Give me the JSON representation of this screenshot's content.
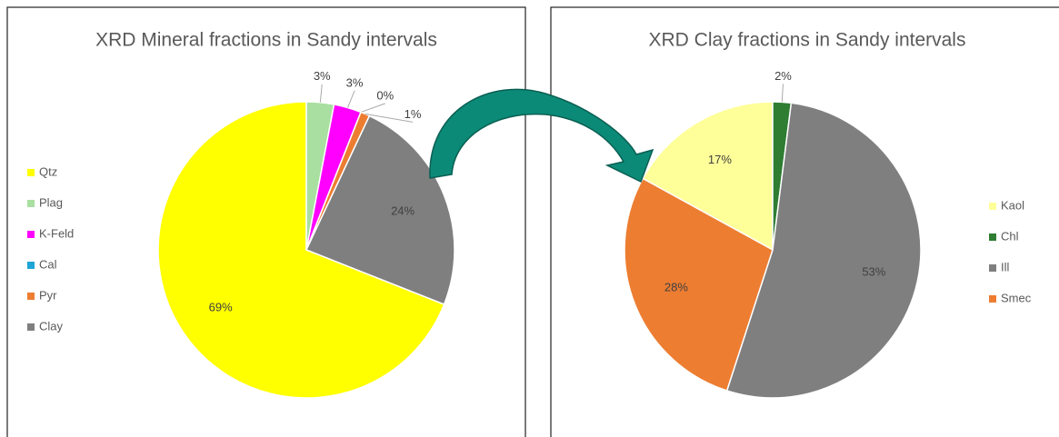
{
  "chart_data": [
    {
      "type": "pie",
      "title": "XRD Mineral fractions in Sandy intervals",
      "categories": [
        "Qtz",
        "Plag",
        "K-Feld",
        "Cal",
        "Pyr",
        "Clay"
      ],
      "values": [
        69,
        3,
        3,
        0,
        1,
        24
      ],
      "value_labels": [
        "69%",
        "3%",
        "3%",
        "0%",
        "1%",
        "24%"
      ],
      "colors": [
        "#ffff00",
        "#a9dfa0",
        "#ff00ff",
        "#1ea5d6",
        "#ed7d31",
        "#7f7f7f"
      ],
      "legend": "left"
    },
    {
      "type": "pie",
      "title": "XRD  Clay fractions in Sandy intervals",
      "categories": [
        "Kaol",
        "Chl",
        "Ill",
        "Smec"
      ],
      "values": [
        17,
        2,
        53,
        28
      ],
      "value_labels": [
        "17%",
        "2%",
        "53%",
        "28%"
      ],
      "colors": [
        "#ffff99",
        "#2e7d32",
        "#7f7f7f",
        "#ed7d31"
      ],
      "legend": "right"
    }
  ]
}
